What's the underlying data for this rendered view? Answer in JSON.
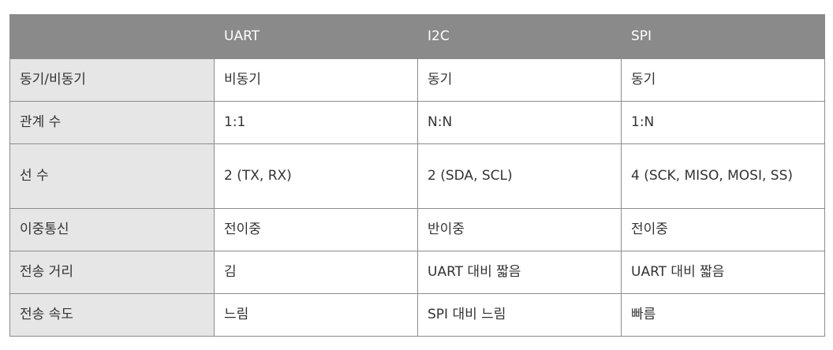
{
  "table": {
    "headers": [
      "",
      "UART",
      "I2C",
      "SPI"
    ],
    "rows": [
      [
        "동기/비동기",
        "비동기",
        "동기",
        "동기"
      ],
      [
        "관계 수",
        "1:1",
        "N:N",
        "1:N"
      ],
      [
        "선 수",
        "2 (TX, RX)",
        "2 (SDA, SCL)",
        "4 (SCK, MISO, MOSI, SS)"
      ],
      [
        "이중통신",
        "전이중",
        "반이중",
        "전이중"
      ],
      [
        "전송 거리",
        "김",
        "UART 대비 짧음",
        "UART 대비 짧음"
      ],
      [
        "전송 속도",
        "느림",
        "SPI 대비 느림",
        "빠름"
      ]
    ]
  },
  "colors": {
    "header_bg": "#8a8a8a",
    "header_text": "#ffffff",
    "rowhead_bg": "#e6e6e6",
    "border": "#8c8c8c",
    "text": "#333333"
  }
}
